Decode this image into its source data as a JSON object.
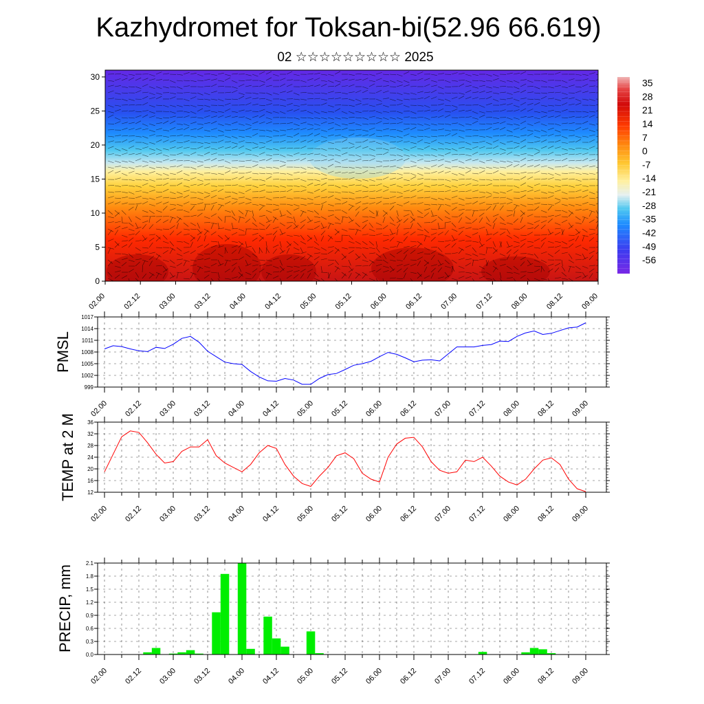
{
  "title": "Kazhydromet for Toksan-bi(52.96 66.619)",
  "subtitle": "02 ☆☆☆☆☆☆☆☆☆ 2025",
  "x_ticks": [
    "02.00",
    "02.12",
    "03.00",
    "03.12",
    "04.00",
    "04.12",
    "05.00",
    "05.12",
    "06.00",
    "06.12",
    "07.00",
    "07.12",
    "08.00",
    "08.12",
    "09.00"
  ],
  "colors": {
    "pmsl": "#0000ff",
    "temp": "#ff0000",
    "precip": "#00ee00"
  },
  "chart_data": [
    {
      "type": "heatmap",
      "yticks": [
        "0",
        "5",
        "10",
        "15",
        "20",
        "25",
        "30"
      ],
      "ylim": [
        0,
        31
      ],
      "colorbar_labels": [
        "35",
        "28",
        "21",
        "14",
        "7",
        "0",
        "-7",
        "-14",
        "-21",
        "-28",
        "-35",
        "-42",
        "-49",
        "-56"
      ],
      "colorbar_range": [
        -63,
        38
      ]
    },
    {
      "type": "line",
      "ylabel": "PMSL",
      "ylim": [
        999,
        1017
      ],
      "yticks": [
        "1017",
        "1014",
        "1011",
        "1008",
        "1005",
        "1002",
        "999"
      ],
      "values": [
        1008.8,
        1009.6,
        1009.4,
        1008.8,
        1008.3,
        1008.1,
        1009.2,
        1008.9,
        1010.0,
        1011.5,
        1012.0,
        1010.5,
        1008.2,
        1006.8,
        1005.4,
        1005.0,
        1004.8,
        1003.0,
        1001.6,
        1000.6,
        1000.5,
        1001.2,
        1000.8,
        999.7,
        999.7,
        1001.2,
        1002.2,
        1002.5,
        1003.5,
        1004.6,
        1005.0,
        1005.6,
        1006.8,
        1007.9,
        1007.4,
        1006.5,
        1005.5,
        1005.9,
        1006.0,
        1005.7,
        1007.5,
        1009.3,
        1009.3,
        1009.3,
        1009.7,
        1009.9,
        1010.8,
        1010.7,
        1012.0,
        1012.9,
        1013.4,
        1012.5,
        1012.8,
        1013.5,
        1014.2,
        1014.4,
        1015.5
      ]
    },
    {
      "type": "line",
      "ylabel": "TEMP at 2 M",
      "ylim": [
        12,
        36
      ],
      "yticks": [
        "36",
        "32",
        "28",
        "24",
        "20",
        "16",
        "12"
      ],
      "values": [
        19.0,
        25.0,
        31.0,
        33.0,
        32.5,
        29.0,
        25.0,
        22.0,
        22.5,
        26.0,
        27.5,
        27.5,
        30.0,
        24.5,
        22.0,
        20.5,
        19.0,
        21.5,
        25.5,
        28.0,
        27.0,
        21.5,
        17.5,
        15.0,
        14.0,
        17.5,
        20.5,
        24.5,
        25.5,
        23.5,
        18.5,
        16.5,
        15.5,
        24.0,
        28.5,
        30.5,
        30.8,
        27.5,
        22.5,
        19.5,
        18.5,
        19.0,
        23.0,
        22.5,
        24.0,
        21.0,
        17.5,
        15.5,
        14.5,
        16.5,
        20.0,
        23.0,
        23.8,
        21.5,
        16.5,
        13.2,
        12.2
      ]
    },
    {
      "type": "bar",
      "ylabel": "PRECIP, mm",
      "ylim": [
        0,
        2.1
      ],
      "yticks": [
        "2.1",
        "1.8",
        "1.5",
        "1.2",
        "0.9",
        "0.6",
        "0.3",
        "0.0"
      ],
      "values": [
        0,
        0,
        0,
        0,
        0,
        0.05,
        0.15,
        0,
        0.02,
        0.05,
        0.1,
        0.02,
        0,
        0.97,
        1.85,
        0,
        2.1,
        0.13,
        0,
        0.87,
        0.37,
        0.18,
        0,
        0,
        0.53,
        0.03,
        0,
        0,
        0,
        0,
        0,
        0,
        0,
        0,
        0,
        0,
        0,
        0,
        0,
        0,
        0,
        0,
        0,
        0,
        0.06,
        0,
        0,
        0,
        0,
        0.05,
        0.15,
        0.12,
        0.03,
        0,
        0,
        0,
        0
      ]
    }
  ]
}
